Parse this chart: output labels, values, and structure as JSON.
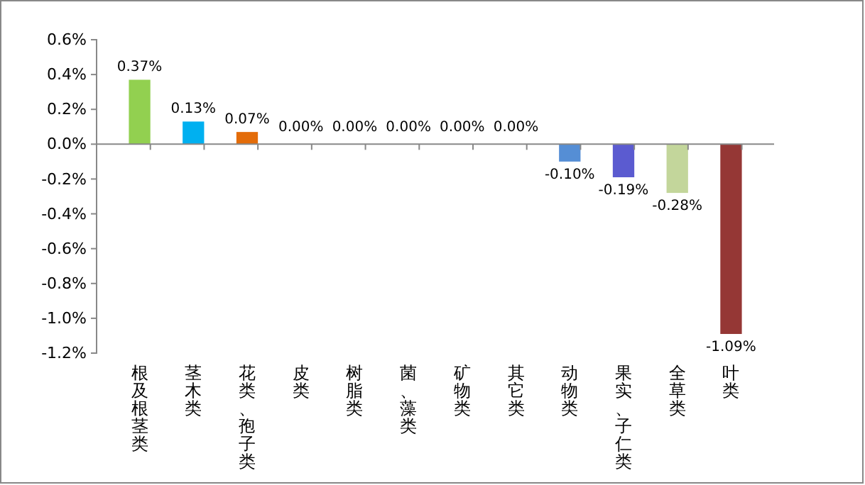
{
  "chart_data": {
    "type": "bar",
    "categories": [
      "根及根茎类",
      "茎木类",
      "花类、孢子类",
      "皮类",
      "树脂类",
      "菌、藻类",
      "矿物类",
      "其它类",
      "动物类",
      "果实、子仁类",
      "全草类",
      "叶类"
    ],
    "values": [
      0.37,
      0.13,
      0.07,
      0.0,
      0.0,
      0.0,
      0.0,
      0.0,
      -0.1,
      -0.19,
      -0.28,
      -1.09
    ],
    "colors": [
      "#92d050",
      "#00b0f0",
      "#e36c09",
      null,
      null,
      null,
      null,
      null,
      "#558ed5",
      "#5b5bd0",
      "#c3d69b",
      "#953735"
    ],
    "value_labels": [
      "0.37%",
      "0.13%",
      "0.07%",
      "0.00%",
      "0.00%",
      "0.00%",
      "0.00%",
      "0.00%",
      "-0.10%",
      "-0.19%",
      "-0.28%",
      "-1.09%"
    ],
    "ylim": [
      -1.2,
      0.6
    ],
    "yticks": [
      {
        "value": -1.2,
        "label": "-1.2%"
      },
      {
        "value": -1.0,
        "label": "-1.0%"
      },
      {
        "value": -0.8,
        "label": "-0.8%"
      },
      {
        "value": -0.6,
        "label": "-0.6%"
      },
      {
        "value": -0.4,
        "label": "-0.4%"
      },
      {
        "value": -0.2,
        "label": "-0.2%"
      },
      {
        "value": 0,
        "label": "0.0%"
      },
      {
        "value": 0.2,
        "label": "0.2%"
      },
      {
        "value": 0.4,
        "label": "0.4%"
      },
      {
        "value": 0.6,
        "label": "0.6%"
      }
    ]
  }
}
